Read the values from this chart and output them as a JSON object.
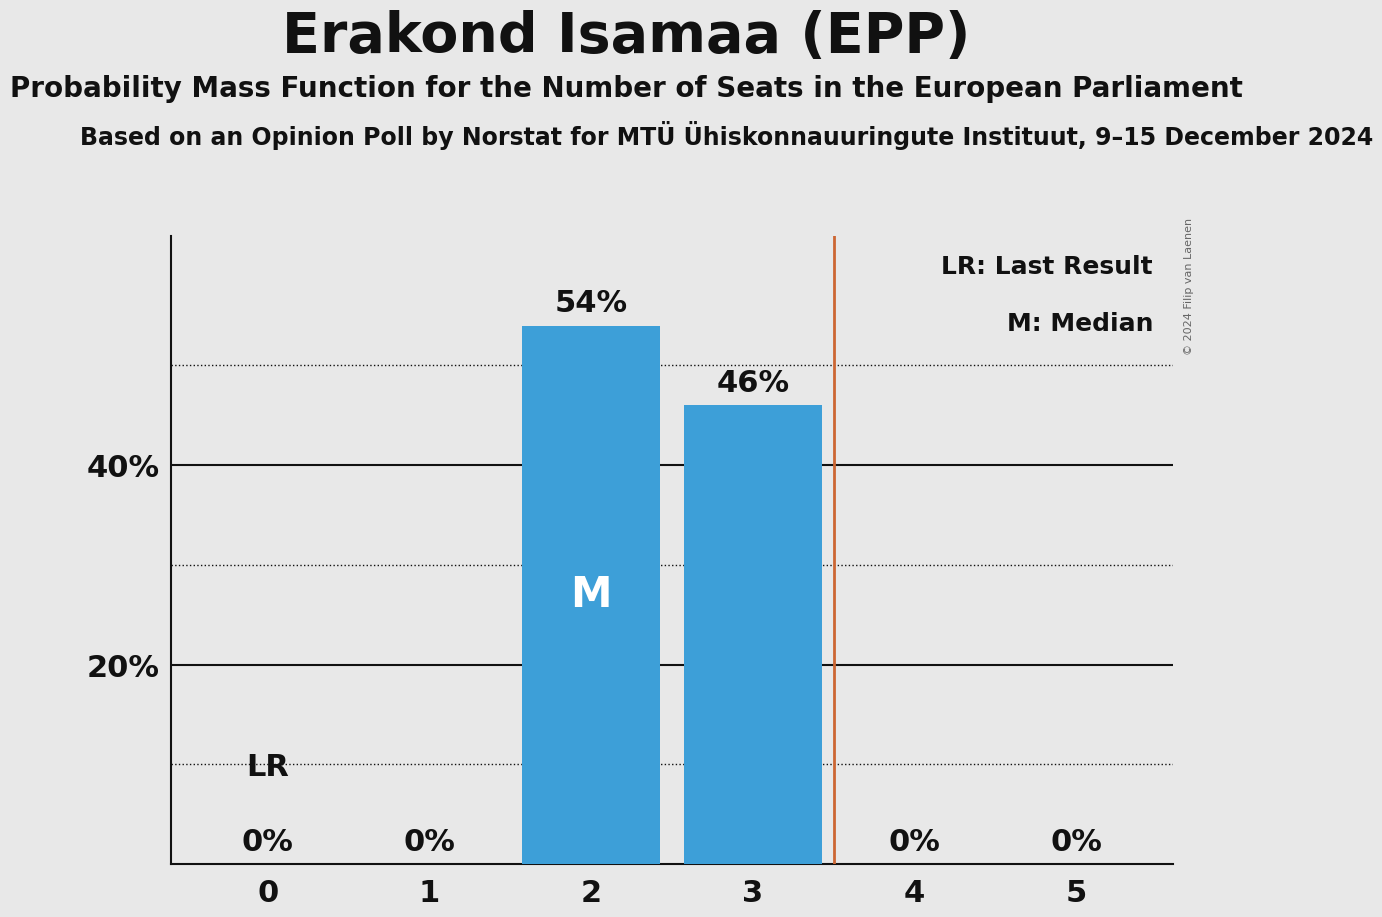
{
  "title": "Erakond Isamaa (EPP)",
  "subtitle1": "Probability Mass Function for the Number of Seats in the European Parliament",
  "subtitle2": "Based on an Opinion Poll by Norstat for MTÜ Ühiskonnauuringute Instituut, 9–15 December 2024",
  "copyright": "© 2024 Filip van Laenen",
  "seats": [
    0,
    1,
    2,
    3,
    4,
    5
  ],
  "probabilities": [
    0.0,
    0.0,
    0.54,
    0.46,
    0.0,
    0.0
  ],
  "bar_color": "#3d9fd8",
  "median": 2,
  "last_result": 3.5,
  "lr_line_color": "#CC6633",
  "background_color": "#E8E8E8",
  "ylim_max": 0.63,
  "grid_color": "#111111",
  "median_label": "M",
  "legend_lr": "LR: Last Result",
  "legend_m": "M: Median",
  "lr_label": "LR",
  "bar_label_fontsize": 22,
  "axis_tick_fontsize": 22,
  "title_fontsize": 40,
  "subtitle1_fontsize": 20,
  "subtitle2_fontsize": 17,
  "legend_fontsize": 18,
  "median_fontsize": 30,
  "lr_label_fontsize": 22
}
